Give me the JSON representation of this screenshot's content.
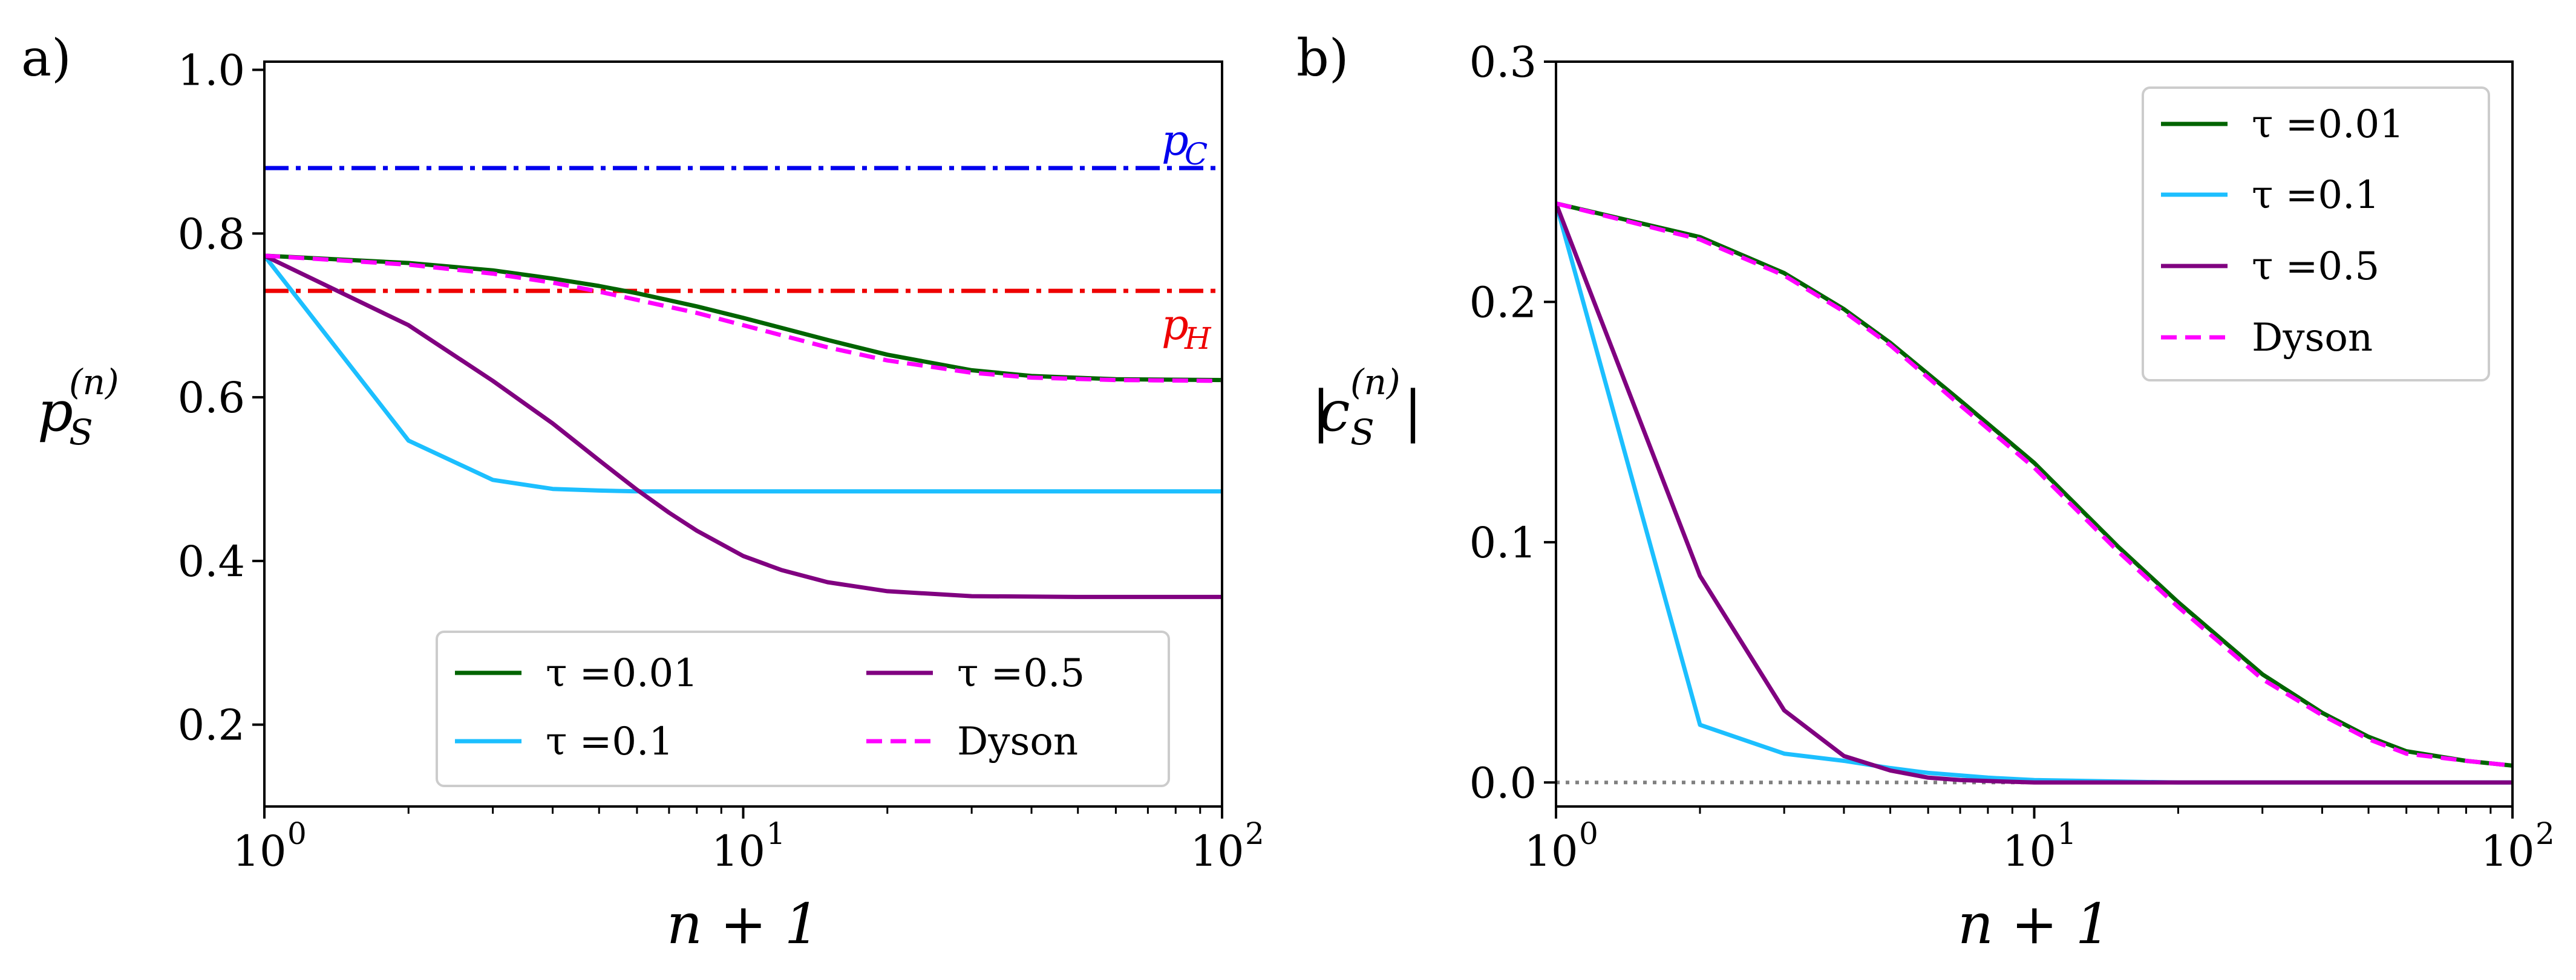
{
  "chart_data": [
    {
      "panel_label": "a)",
      "type": "line",
      "xscale": "log",
      "xlim": [
        1,
        100
      ],
      "ylim": [
        0.1,
        1.01
      ],
      "xlabel": "n + 1",
      "ylabel": {
        "base": "p",
        "sup": "(n)",
        "sub": "S"
      },
      "xticks": [
        {
          "value": 1,
          "base": "10",
          "exp": "0"
        },
        {
          "value": 10,
          "base": "10",
          "exp": "1"
        },
        {
          "value": 100,
          "base": "10",
          "exp": "2"
        }
      ],
      "yticks": [
        {
          "value": 0.2,
          "label": "0.2"
        },
        {
          "value": 0.4,
          "label": "0.4"
        },
        {
          "value": 0.6,
          "label": "0.6"
        },
        {
          "value": 0.8,
          "label": "0.8"
        },
        {
          "value": 1.0,
          "label": "1.0"
        }
      ],
      "grid": false,
      "legend": {
        "placement": "lower-right",
        "columns": 2
      },
      "reference_lines": [
        {
          "label_base": "p",
          "label_sub": "C",
          "y": 0.88,
          "color": "#0000ee",
          "style": "dashdot",
          "label_position": "above-right"
        },
        {
          "label_base": "p",
          "label_sub": "H",
          "y": 0.73,
          "color": "#ee0000",
          "style": "dashdot",
          "label_position": "below-right"
        }
      ],
      "series": [
        {
          "name": "τ =0.01",
          "color": "#006400",
          "style": "solid",
          "x": [
            1,
            2,
            3,
            4,
            5,
            6,
            8,
            10,
            15,
            20,
            30,
            40,
            60,
            100
          ],
          "y": [
            0.773,
            0.764,
            0.755,
            0.745,
            0.736,
            0.727,
            0.711,
            0.697,
            0.67,
            0.652,
            0.633,
            0.626,
            0.622,
            0.621
          ]
        },
        {
          "name": "τ =0.1",
          "color": "#1cbfff",
          "style": "solid",
          "x": [
            1,
            2,
            3,
            4,
            5,
            6,
            10,
            20,
            50,
            100
          ],
          "y": [
            0.773,
            0.547,
            0.499,
            0.488,
            0.486,
            0.485,
            0.485,
            0.485,
            0.485,
            0.485
          ]
        },
        {
          "name": "τ =0.5",
          "color": "#800080",
          "style": "solid",
          "x": [
            1,
            2,
            3,
            4,
            5,
            6,
            7,
            8,
            10,
            12,
            15,
            20,
            30,
            50,
            100
          ],
          "y": [
            0.773,
            0.688,
            0.62,
            0.568,
            0.523,
            0.487,
            0.459,
            0.437,
            0.406,
            0.389,
            0.374,
            0.363,
            0.357,
            0.356,
            0.356
          ]
        },
        {
          "name": "Dyson",
          "color": "#ff00ff",
          "style": "dashed",
          "x": [
            1,
            2,
            3,
            4,
            5,
            6,
            8,
            10,
            15,
            20,
            30,
            40,
            60,
            100
          ],
          "y": [
            0.773,
            0.762,
            0.751,
            0.74,
            0.729,
            0.719,
            0.703,
            0.688,
            0.661,
            0.645,
            0.63,
            0.624,
            0.621,
            0.62
          ]
        }
      ]
    },
    {
      "panel_label": "b)",
      "type": "line",
      "xscale": "log",
      "xlim": [
        1,
        100
      ],
      "ylim": [
        -0.01,
        0.3
      ],
      "xlabel": "n + 1",
      "ylabel": {
        "base": "c",
        "sup": "(n)",
        "sub": "S",
        "abs": true
      },
      "xticks": [
        {
          "value": 1,
          "base": "10",
          "exp": "0"
        },
        {
          "value": 10,
          "base": "10",
          "exp": "1"
        },
        {
          "value": 100,
          "base": "10",
          "exp": "2"
        }
      ],
      "yticks": [
        {
          "value": 0.0,
          "label": "0.0"
        },
        {
          "value": 0.1,
          "label": "0.1"
        },
        {
          "value": 0.2,
          "label": "0.2"
        },
        {
          "value": 0.3,
          "label": "0.3"
        }
      ],
      "grid": false,
      "legend": {
        "placement": "upper-right",
        "columns": 1
      },
      "reference_lines": [
        {
          "y": 0.0,
          "color": "#808080",
          "style": "dotted"
        }
      ],
      "series": [
        {
          "name": "τ =0.01",
          "color": "#006400",
          "style": "solid",
          "x": [
            1,
            2,
            3,
            4,
            5,
            7,
            10,
            15,
            20,
            30,
            40,
            50,
            60,
            80,
            100
          ],
          "y": [
            0.241,
            0.227,
            0.212,
            0.197,
            0.183,
            0.159,
            0.133,
            0.098,
            0.075,
            0.045,
            0.029,
            0.019,
            0.013,
            0.009,
            0.007
          ]
        },
        {
          "name": "τ =0.1",
          "color": "#1cbfff",
          "style": "solid",
          "x": [
            1,
            2,
            3,
            4,
            5,
            6,
            8,
            10,
            20,
            100
          ],
          "y": [
            0.241,
            0.024,
            0.012,
            0.009,
            0.006,
            0.004,
            0.002,
            0.001,
            0.0,
            0.0
          ]
        },
        {
          "name": "τ =0.5",
          "color": "#800080",
          "style": "solid",
          "x": [
            1,
            2,
            3,
            4,
            5,
            6,
            7,
            10,
            20,
            100
          ],
          "y": [
            0.241,
            0.086,
            0.03,
            0.011,
            0.005,
            0.002,
            0.001,
            0.0,
            0.0,
            0.0
          ]
        },
        {
          "name": "Dyson",
          "color": "#ff00ff",
          "style": "dashed",
          "x": [
            1,
            2,
            3,
            4,
            5,
            7,
            10,
            15,
            20,
            30,
            40,
            50,
            60,
            80,
            100
          ],
          "y": [
            0.241,
            0.226,
            0.211,
            0.196,
            0.182,
            0.157,
            0.131,
            0.096,
            0.073,
            0.043,
            0.028,
            0.018,
            0.012,
            0.009,
            0.007
          ]
        }
      ]
    }
  ]
}
